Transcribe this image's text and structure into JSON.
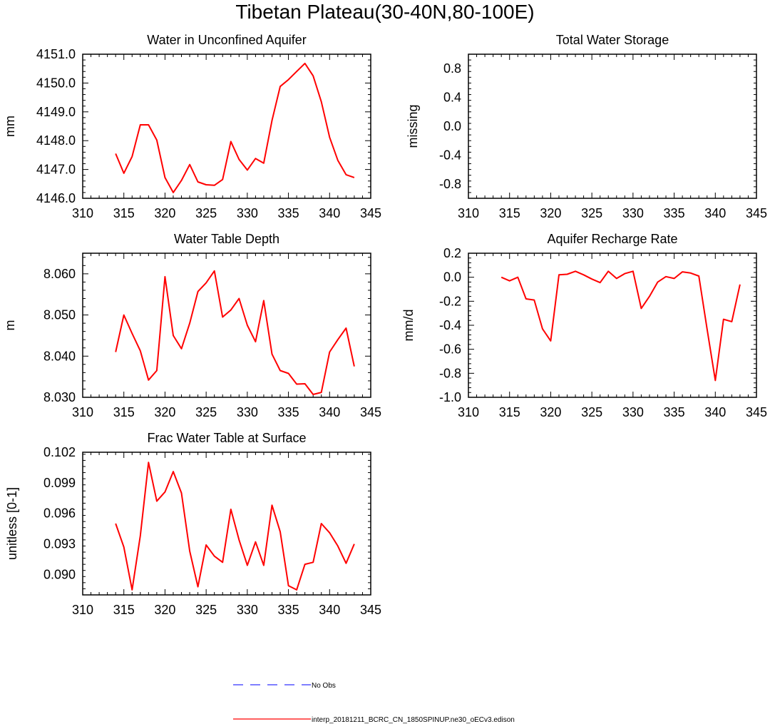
{
  "page": {
    "title": "Tibetan Plateau(30-40N,80-100E)"
  },
  "legend": {
    "items": [
      {
        "label": "No Obs",
        "color": "#3333ff",
        "style": "dashed"
      },
      {
        "label": "interp_20181211_BCRC_CN_1850SPINUP.ne30_oECv3.edison",
        "color": "#ff0000",
        "style": "solid"
      }
    ]
  },
  "chart_data": [
    {
      "type": "line",
      "title": "Water in Unconfined Aquifer",
      "xlabel": "",
      "ylabel": "mm",
      "xlim": [
        310,
        345
      ],
      "ylim": [
        4146,
        4151
      ],
      "xticks": [
        310,
        315,
        320,
        325,
        330,
        335,
        340,
        345
      ],
      "yticks": [
        "4146.0",
        "4147.0",
        "4148.0",
        "4149.0",
        "4150.0",
        "4151.0"
      ],
      "series": [
        {
          "color": "#ff0000",
          "x": [
            314,
            315,
            316,
            317,
            318,
            319,
            320,
            321,
            322,
            323,
            324,
            325,
            326,
            327,
            328,
            329,
            330,
            331,
            332,
            333,
            334,
            335,
            336,
            337,
            338,
            339,
            340,
            341,
            342,
            343
          ],
          "y": [
            4147.55,
            4146.87,
            4147.45,
            4148.55,
            4148.55,
            4148.02,
            4146.72,
            4146.2,
            4146.62,
            4147.17,
            4146.57,
            4146.47,
            4146.45,
            4146.65,
            4147.97,
            4147.35,
            4146.98,
            4147.38,
            4147.22,
            4148.7,
            4149.88,
            4150.12,
            4150.4,
            4150.68,
            4150.25,
            4149.35,
            4148.12,
            4147.32,
            4146.82,
            4146.72
          ]
        }
      ]
    },
    {
      "type": "line",
      "title": "Total Water Storage",
      "xlabel": "",
      "ylabel": "missing",
      "xlim": [
        310,
        345
      ],
      "ylim": [
        -1,
        1
      ],
      "xticks": [
        310,
        315,
        320,
        325,
        330,
        335,
        340,
        345
      ],
      "yticks": [
        "-0.8",
        "-0.4",
        "0.0",
        "0.4",
        "0.8"
      ],
      "series": []
    },
    {
      "type": "line",
      "title": "Water Table Depth",
      "xlabel": "",
      "ylabel": "m",
      "xlim": [
        310,
        345
      ],
      "ylim": [
        8.03,
        8.065
      ],
      "xticks": [
        310,
        315,
        320,
        325,
        330,
        335,
        340,
        345
      ],
      "yticks": [
        "8.030",
        "8.040",
        "8.050",
        "8.060"
      ],
      "series": [
        {
          "color": "#ff0000",
          "x": [
            314,
            315,
            316,
            317,
            318,
            319,
            320,
            321,
            322,
            323,
            324,
            325,
            326,
            327,
            328,
            329,
            330,
            331,
            332,
            333,
            334,
            335,
            336,
            337,
            338,
            339,
            340,
            341,
            342,
            343
          ],
          "y": [
            8.041,
            8.05,
            8.0455,
            8.0413,
            8.0342,
            8.0365,
            8.0593,
            8.045,
            8.0418,
            8.048,
            8.0557,
            8.0578,
            8.0607,
            8.0495,
            8.0512,
            8.054,
            8.0475,
            8.0435,
            8.0535,
            8.0405,
            8.0365,
            8.0358,
            8.0332,
            8.0333,
            8.0307,
            8.0312,
            8.041,
            8.044,
            8.0468,
            8.0375
          ]
        }
      ]
    },
    {
      "type": "line",
      "title": "Aquifer Recharge Rate",
      "xlabel": "",
      "ylabel": "mm/d",
      "xlim": [
        310,
        345
      ],
      "ylim": [
        -1.0,
        0.2
      ],
      "xticks": [
        310,
        315,
        320,
        325,
        330,
        335,
        340,
        345
      ],
      "yticks": [
        "-1.0",
        "-0.8",
        "-0.6",
        "-0.4",
        "-0.2",
        "0.0",
        "0.2"
      ],
      "series": [
        {
          "color": "#ff0000",
          "x": [
            314,
            315,
            316,
            317,
            318,
            319,
            320,
            321,
            322,
            323,
            324,
            325,
            326,
            327,
            328,
            329,
            330,
            331,
            332,
            333,
            334,
            335,
            336,
            337,
            338,
            339,
            340,
            341,
            342,
            343
          ],
          "y": [
            0.0,
            -0.03,
            0.0,
            -0.18,
            -0.19,
            -0.43,
            -0.53,
            0.02,
            0.025,
            0.05,
            0.02,
            -0.015,
            -0.045,
            0.05,
            -0.01,
            0.03,
            0.05,
            -0.26,
            -0.16,
            -0.04,
            0.005,
            -0.01,
            0.045,
            0.035,
            0.01,
            -0.43,
            -0.86,
            -0.35,
            -0.37,
            -0.06
          ]
        }
      ]
    },
    {
      "type": "line",
      "title": "Frac Water Table at Surface",
      "xlabel": "",
      "ylabel": "unitless [0-1]",
      "xlim": [
        310,
        345
      ],
      "ylim": [
        0.088,
        0.102
      ],
      "xticks": [
        310,
        315,
        320,
        325,
        330,
        335,
        340,
        345
      ],
      "yticks": [
        "0.090",
        "0.093",
        "0.096",
        "0.099",
        "0.102"
      ],
      "series": [
        {
          "color": "#ff0000",
          "x": [
            314,
            315,
            316,
            317,
            318,
            319,
            320,
            321,
            322,
            323,
            324,
            325,
            326,
            327,
            328,
            329,
            330,
            331,
            332,
            333,
            334,
            335,
            336,
            337,
            338,
            339,
            340,
            341,
            342,
            343
          ],
          "y": [
            0.095,
            0.0927,
            0.0885,
            0.0938,
            0.101,
            0.0972,
            0.0981,
            0.1001,
            0.098,
            0.0923,
            0.0888,
            0.0929,
            0.0918,
            0.0912,
            0.0964,
            0.0934,
            0.0909,
            0.0932,
            0.0909,
            0.0968,
            0.0942,
            0.0889,
            0.0885,
            0.091,
            0.0912,
            0.095,
            0.0941,
            0.0928,
            0.0911,
            0.093
          ]
        }
      ]
    }
  ]
}
